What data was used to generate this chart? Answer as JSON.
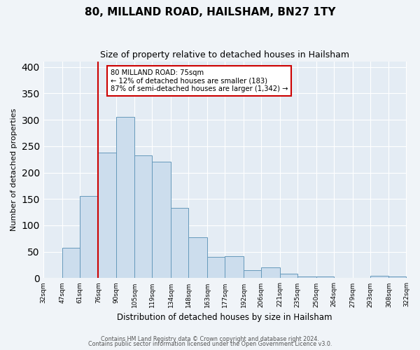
{
  "title": "80, MILLAND ROAD, HAILSHAM, BN27 1TY",
  "subtitle": "Size of property relative to detached houses in Hailsham",
  "xlabel": "Distribution of detached houses by size in Hailsham",
  "ylabel": "Number of detached properties",
  "bin_labels": [
    "32sqm",
    "47sqm",
    "61sqm",
    "76sqm",
    "90sqm",
    "105sqm",
    "119sqm",
    "134sqm",
    "148sqm",
    "163sqm",
    "177sqm",
    "192sqm",
    "206sqm",
    "221sqm",
    "235sqm",
    "250sqm",
    "264sqm",
    "279sqm",
    "293sqm",
    "308sqm",
    "322sqm"
  ],
  "bin_edges": [
    32,
    47,
    61,
    76,
    90,
    105,
    119,
    134,
    148,
    163,
    177,
    192,
    206,
    221,
    235,
    250,
    264,
    279,
    293,
    308,
    322
  ],
  "bar_heights": [
    0,
    57,
    155,
    238,
    305,
    232,
    220,
    133,
    78,
    40,
    42,
    15,
    20,
    8,
    3,
    3,
    0,
    0,
    5,
    3,
    3
  ],
  "bar_color": "#ccdded",
  "bar_edge_color": "#6699bb",
  "property_line_x": 76,
  "property_line_color": "#cc0000",
  "annotation_box_color": "#cc0000",
  "annotation_line1": "80 MILLAND ROAD: 75sqm",
  "annotation_line2": "← 12% of detached houses are smaller (183)",
  "annotation_line3": "87% of semi-detached houses are larger (1,342) →",
  "ylim": [
    0,
    410
  ],
  "yticks": [
    0,
    50,
    100,
    150,
    200,
    250,
    300,
    350,
    400
  ],
  "footer1": "Contains HM Land Registry data © Crown copyright and database right 2024.",
  "footer2": "Contains public sector information licensed under the Open Government Licence v3.0.",
  "bg_color": "#f0f4f8",
  "plot_bg_color": "#e4ecf4"
}
